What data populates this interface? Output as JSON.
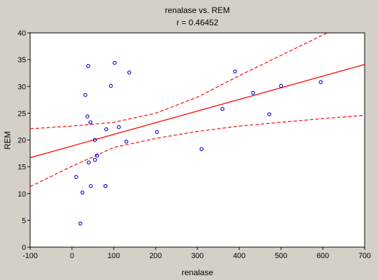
{
  "chart_data": {
    "type": "scatter",
    "title": "renalase vs. REM",
    "subtitle": "r = 0.46452",
    "xlabel": "renalase",
    "ylabel": "REM",
    "xlim": [
      -100,
      700
    ],
    "ylim": [
      0,
      40
    ],
    "xticks": [
      "-100",
      "0",
      "100",
      "200",
      "300",
      "400",
      "500",
      "600",
      "700"
    ],
    "yticks": [
      "0",
      "5",
      "10",
      "15",
      "20",
      "25",
      "30",
      "35",
      "40"
    ],
    "grid": false,
    "colors": {
      "points": "#0000cc",
      "fit": "#ff0000",
      "plot_bg": "#ffffff",
      "frame_bg": "#d4d0c8"
    },
    "points": [
      {
        "x": 10,
        "y": 13.1
      },
      {
        "x": 20,
        "y": 4.4
      },
      {
        "x": 25,
        "y": 10.2
      },
      {
        "x": 32,
        "y": 28.4
      },
      {
        "x": 37,
        "y": 24.4
      },
      {
        "x": 39,
        "y": 33.8
      },
      {
        "x": 40,
        "y": 15.8
      },
      {
        "x": 44,
        "y": 23.3
      },
      {
        "x": 45,
        "y": 11.4
      },
      {
        "x": 55,
        "y": 20.0
      },
      {
        "x": 55,
        "y": 16.3
      },
      {
        "x": 60,
        "y": 17.1
      },
      {
        "x": 80,
        "y": 11.4
      },
      {
        "x": 82,
        "y": 22.0
      },
      {
        "x": 93,
        "y": 30.1
      },
      {
        "x": 102,
        "y": 34.4
      },
      {
        "x": 112,
        "y": 22.4
      },
      {
        "x": 130,
        "y": 19.7
      },
      {
        "x": 137,
        "y": 32.6
      },
      {
        "x": 203,
        "y": 21.5
      },
      {
        "x": 310,
        "y": 18.3
      },
      {
        "x": 360,
        "y": 25.8
      },
      {
        "x": 390,
        "y": 32.8
      },
      {
        "x": 433,
        "y": 28.8
      },
      {
        "x": 472,
        "y": 24.8
      },
      {
        "x": 500,
        "y": 30.1
      },
      {
        "x": 595,
        "y": 30.8
      }
    ],
    "fit_line": {
      "x": [
        -100,
        700
      ],
      "y": [
        16.7,
        34.1
      ]
    },
    "confidence_band": {
      "x": [
        -100,
        0,
        100,
        200,
        300,
        400,
        500,
        600,
        700
      ],
      "upper": [
        22.1,
        22.6,
        23.3,
        25.0,
        28.0,
        32.0,
        35.8,
        39.6,
        43.4
      ],
      "lower": [
        11.3,
        15.1,
        18.6,
        20.3,
        21.6,
        22.6,
        23.3,
        24.0,
        24.6
      ]
    }
  }
}
